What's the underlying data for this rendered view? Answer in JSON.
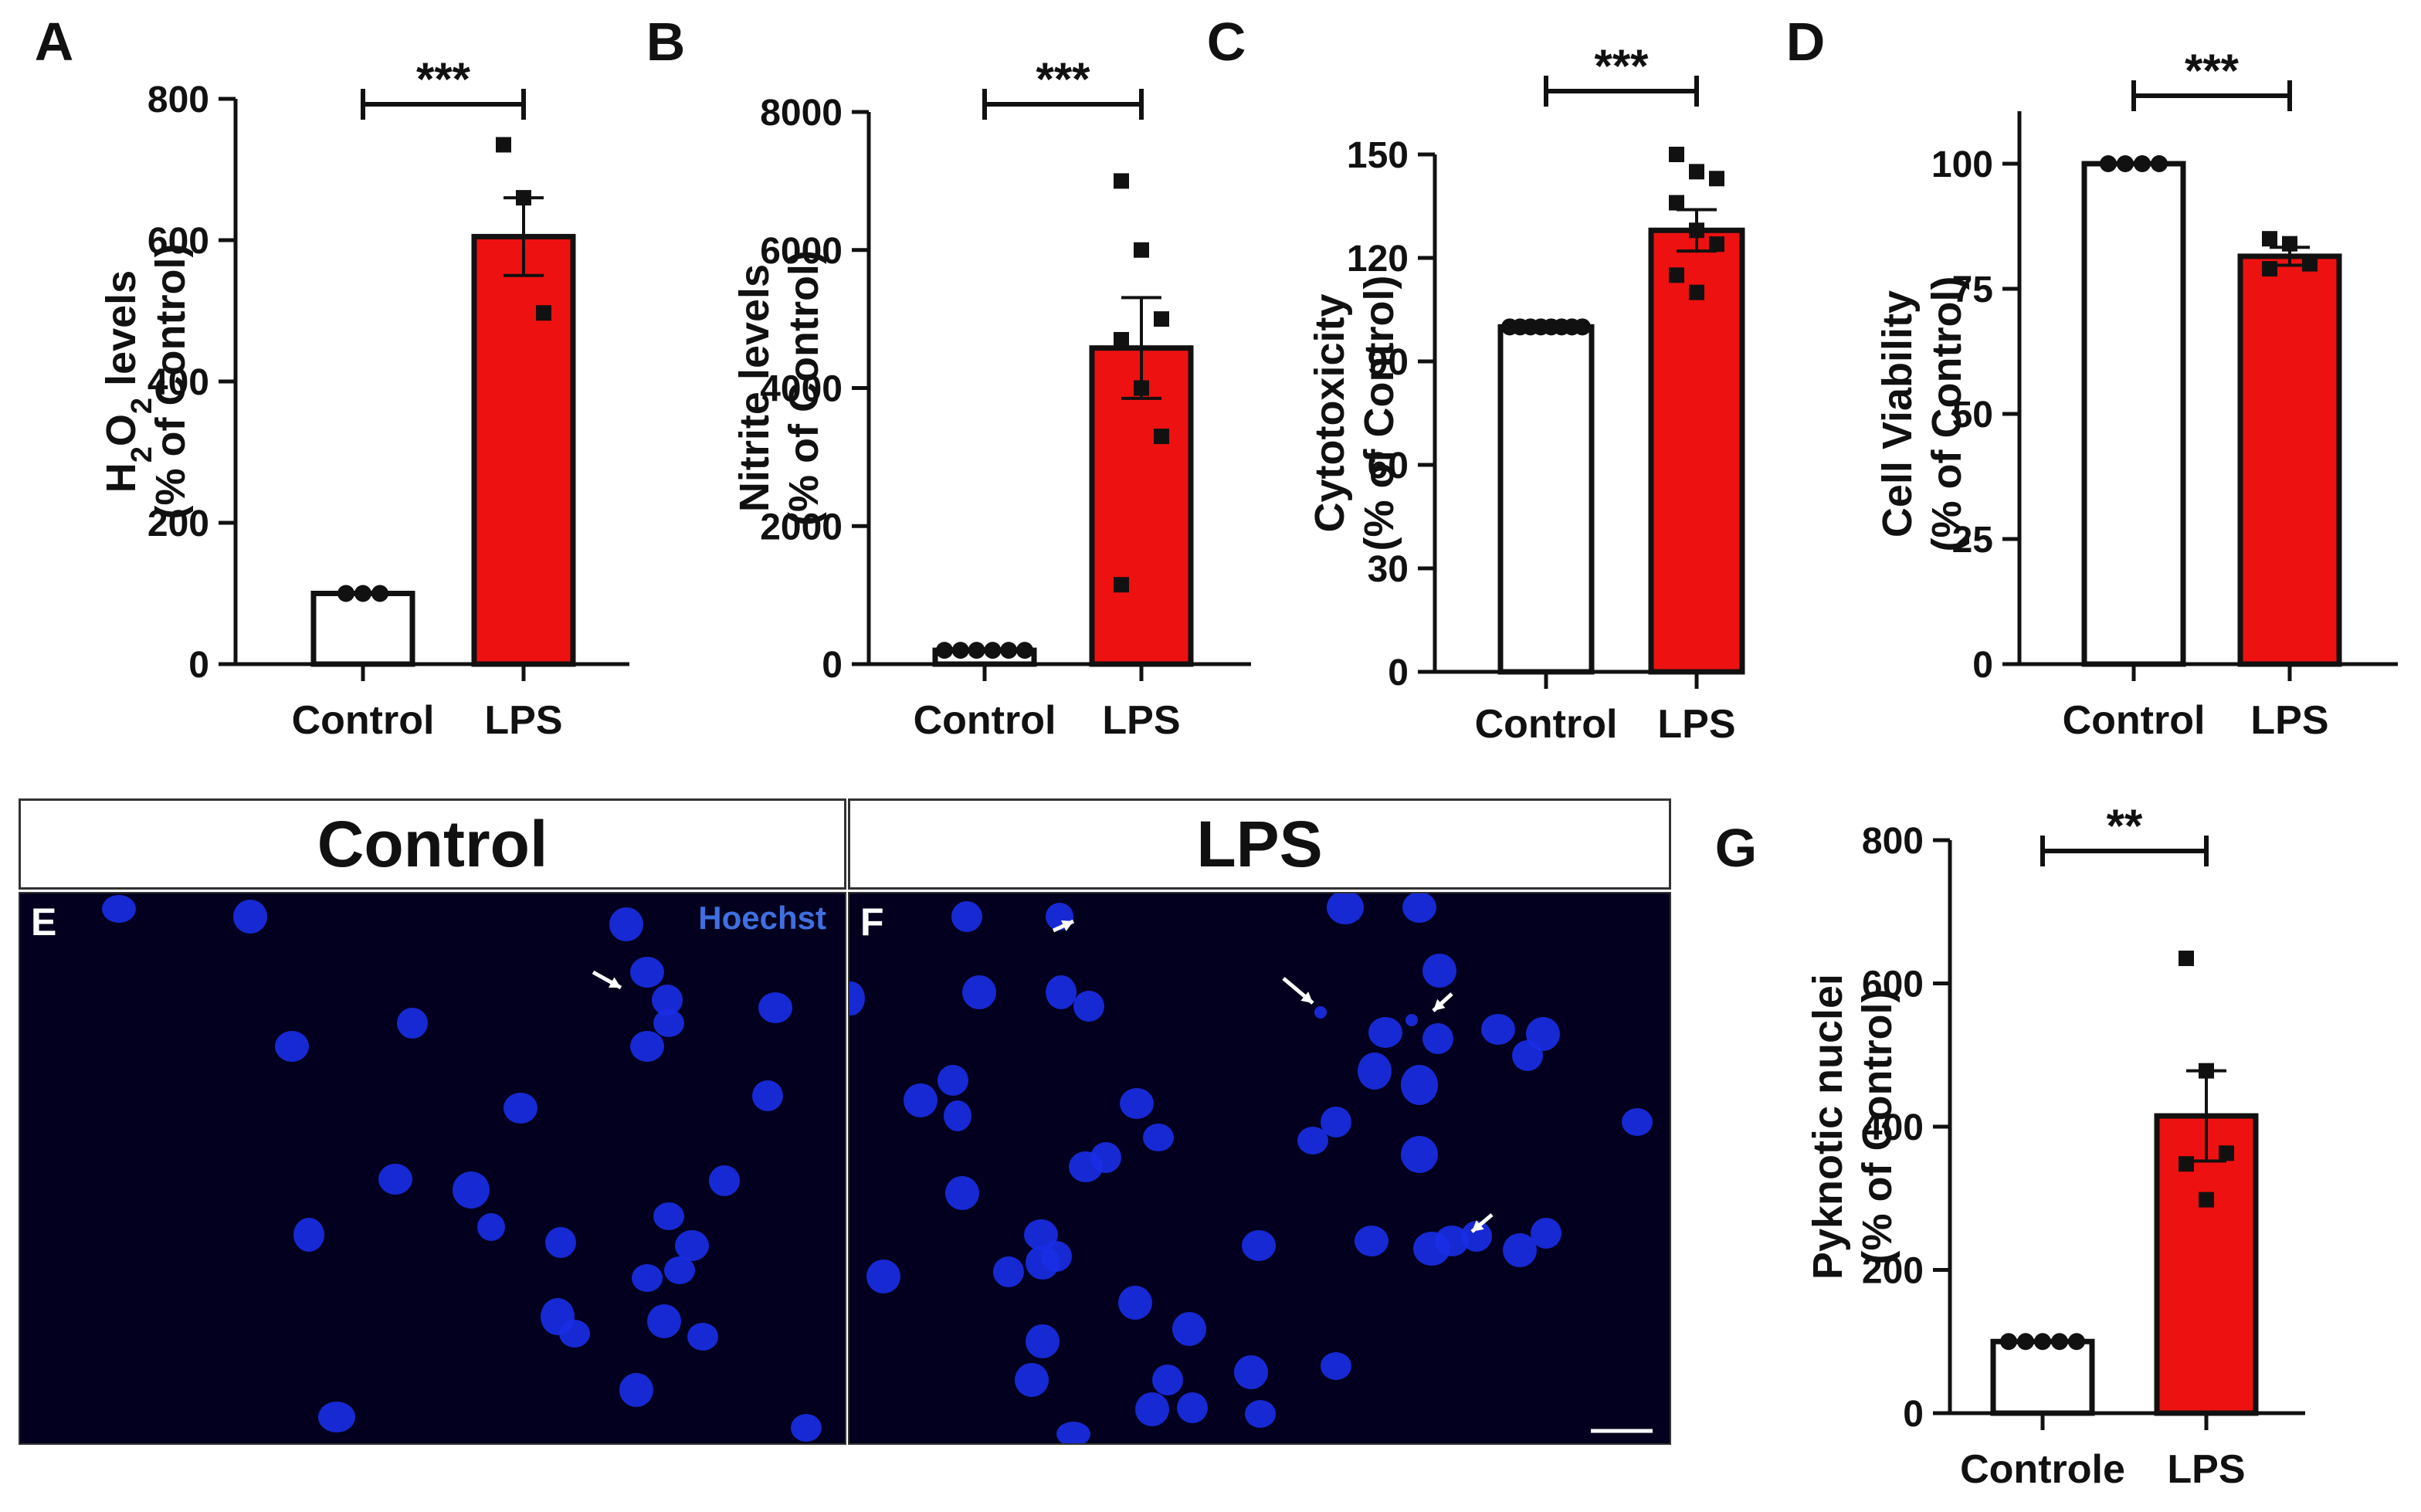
{
  "chart_data": [
    {
      "panel": "A",
      "type": "bar",
      "categories": [
        "Control",
        "LPS"
      ],
      "values": [
        100,
        605
      ],
      "sem": [
        0,
        55
      ],
      "points": [
        [
          100,
          100,
          100
        ],
        [
          735,
          660,
          497
        ]
      ],
      "ylabel_line1": "H2O2 levels",
      "ylabel_line2": "(% of Control)",
      "ylim": [
        0,
        800
      ],
      "yticks": [
        "0",
        "200",
        "400",
        "600",
        "800"
      ],
      "significance": "***",
      "colors": [
        "#ffffff",
        "#ee1111"
      ]
    },
    {
      "panel": "B",
      "type": "bar",
      "categories": [
        "Control",
        "LPS"
      ],
      "values": [
        200,
        4580
      ],
      "sem": [
        0,
        730
      ],
      "points": [
        [
          200,
          200,
          200,
          200,
          200,
          200
        ],
        [
          7000,
          6000,
          5000,
          4700,
          4000,
          3300,
          1150
        ]
      ],
      "ylabel_line1": "Nitrite levels",
      "ylabel_line2": "(% of Control)",
      "ylim": [
        0,
        8000
      ],
      "yticks": [
        "0",
        "2000",
        "4000",
        "6000",
        "8000"
      ],
      "significance": "***",
      "colors": [
        "#ffffff",
        "#ee1111"
      ]
    },
    {
      "panel": "C",
      "type": "bar",
      "categories": [
        "Control",
        "LPS"
      ],
      "values": [
        100,
        128
      ],
      "sem": [
        0,
        6
      ],
      "points": [
        [
          100,
          100,
          100,
          100,
          100,
          100,
          100,
          100
        ],
        [
          150,
          145,
          143,
          136,
          128,
          124,
          115,
          110
        ]
      ],
      "ylabel_line1": "Cytotoxicity",
      "ylabel_line2": "(% of Control)",
      "ylim": [
        0,
        150
      ],
      "yticks": [
        "0",
        "30",
        "60",
        "90",
        "120",
        "150"
      ],
      "significance": "***",
      "colors": [
        "#ffffff",
        "#ee1111"
      ]
    },
    {
      "panel": "D",
      "type": "bar",
      "categories": [
        "Control",
        "LPS"
      ],
      "values": [
        100,
        81.5
      ],
      "sem": [
        0,
        1.8
      ],
      "points": [
        [
          100,
          100,
          100,
          100
        ],
        [
          85,
          84,
          80,
          79
        ]
      ],
      "ylabel_line1": "Cell Viability",
      "ylabel_line2": "(% of Control)",
      "ylim": [
        0,
        110
      ],
      "yticks": [
        "0",
        "25",
        "50",
        "75",
        "100"
      ],
      "significance": "***",
      "colors": [
        "#ffffff",
        "#ee1111"
      ]
    },
    {
      "panel": "G",
      "type": "bar",
      "categories": [
        "Controle",
        "LPS"
      ],
      "values": [
        100,
        415
      ],
      "sem": [
        0,
        63
      ],
      "points": [
        [
          100,
          100,
          100,
          100,
          100
        ],
        [
          635,
          478,
          363,
          348,
          298
        ]
      ],
      "ylabel_line1": "Pyknotic nuclei",
      "ylabel_line2": "(% of Control)",
      "ylim": [
        0,
        800
      ],
      "yticks": [
        "0",
        "200",
        "400",
        "600",
        "800"
      ],
      "significance": "**",
      "colors": [
        "#ffffff",
        "#ee1111"
      ]
    }
  ],
  "micrographs": {
    "control_header": "Control",
    "lps_header": "LPS",
    "panel_e_letter": "E",
    "panel_f_letter": "F",
    "stain_label": "Hoechst",
    "background_color": "#02001e",
    "nucleus_color": "#1a2ee6"
  }
}
